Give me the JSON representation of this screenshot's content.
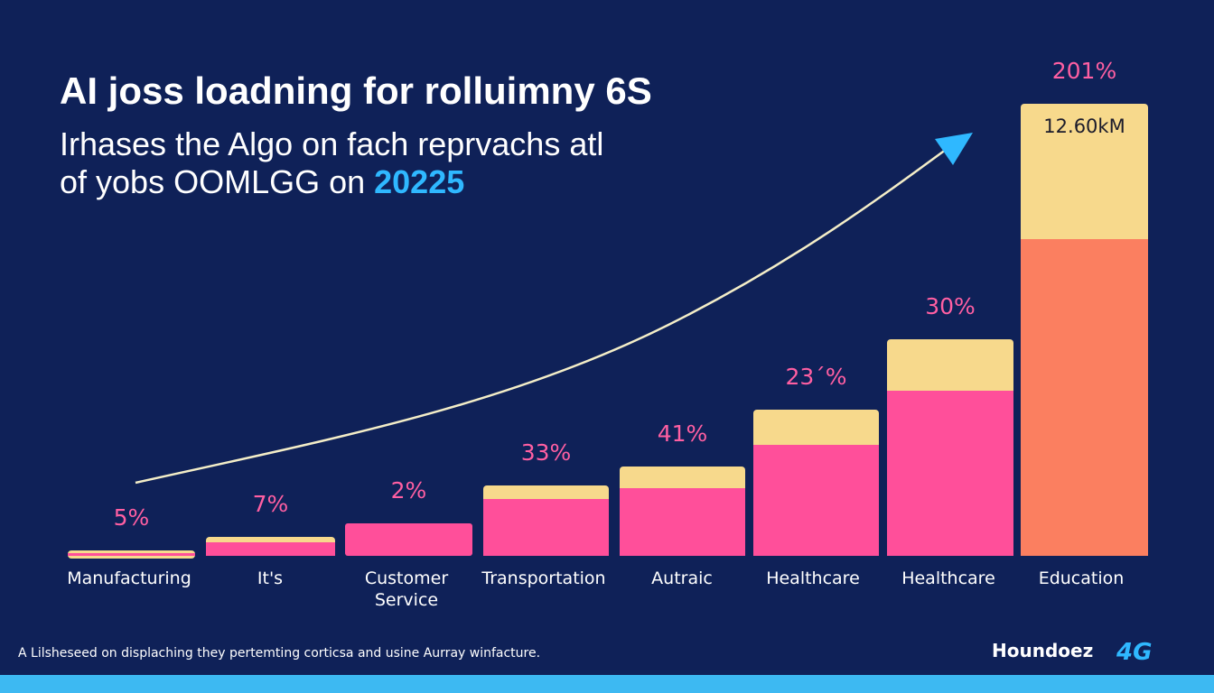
{
  "header": {
    "title": "AI joss loadning for rolluimny 6S",
    "subtitle_line1": "Irhases the Algo on fach reprvachs atl",
    "subtitle_line2_prefix": "of yobs OOMLGG on ",
    "subtitle_line2_highlight": "20225"
  },
  "footer": {
    "note": "A Lilsheseed on displaching they pertemting corticsa and usine Aurray winfacture.",
    "brand_name": "Houndoez",
    "brand_mark": "4G"
  },
  "colors": {
    "background": "#0f2158",
    "bar_main": "#ff4f9a",
    "bar_top": "#f7d98c",
    "bar_last": "#fb7f60",
    "label_pink": "#ff5fa2",
    "accent_blue": "#2fb8ff",
    "trend_line": "#f4eec8",
    "bottom_stripe": "#3db9f2"
  },
  "chart_data": {
    "type": "bar",
    "categories": [
      "Manufacturing",
      "It's",
      "Customer Service",
      "Transportation",
      "Autraic",
      "Healthcare",
      "Healthcare",
      "Education"
    ],
    "value_labels": [
      "5%",
      "7%",
      "2%",
      "33%",
      "41%",
      "23´%",
      "30%",
      "201%"
    ],
    "inside_label": "12.60kM",
    "series": [
      {
        "values": [
          1,
          5,
          12,
          21,
          25,
          41,
          61,
          117
        ]
      },
      {
        "values": [
          1,
          2,
          0,
          5,
          8,
          13,
          19,
          50
        ]
      }
    ],
    "ylim": [
      0,
      170
    ],
    "trend_arrow": true,
    "grid": false
  }
}
